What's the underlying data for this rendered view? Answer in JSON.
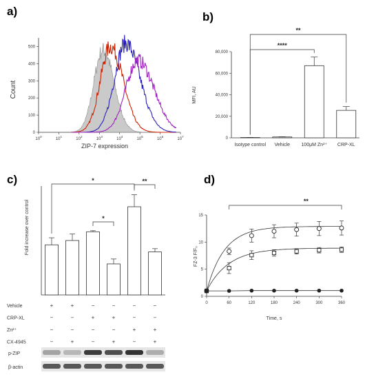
{
  "colors": {
    "isotype": "#b8b8b8",
    "vehicle": "#cc2200",
    "crp": "#2a1fb8",
    "zinc": "#a020c0",
    "wb_band": "#333333"
  },
  "chart_data": [
    {
      "panel": "a)",
      "type": "area",
      "xlabel": "ZIP-7 expression",
      "ylabel": "Count",
      "x_scale": "log",
      "xlim": [
        1,
        10000000
      ],
      "ylim": [
        0,
        550
      ],
      "x_ticks": [
        "10^0",
        "10^1",
        "10^2",
        "10^3",
        "10^4",
        "10^5",
        "10^6",
        "10^7"
      ],
      "y_ticks": [
        0,
        100,
        200,
        300,
        400,
        500
      ],
      "series": [
        {
          "key": "isotype",
          "color": "#b8b8b8",
          "peak_x": 1500,
          "peak_y": 480
        },
        {
          "key": "vehicle",
          "color": "#cc2200",
          "peak_x": 3500,
          "peak_y": 500
        },
        {
          "key": "crp",
          "color": "#2a1fb8",
          "peak_x": 20000,
          "peak_y": 520
        },
        {
          "key": "zinc",
          "color": "#a020c0",
          "peak_x": 80000,
          "peak_y": 420
        }
      ]
    },
    {
      "panel": "b)",
      "type": "bar",
      "ylabel": "MFI, AU",
      "ylim": [
        0,
        80000
      ],
      "y_ticks": [
        "0",
        "20,000",
        "40,000",
        "60,000",
        "80,000"
      ],
      "y_tick_values": [
        0,
        20000,
        40000,
        60000,
        80000
      ],
      "categories": [
        "Isotype control",
        "Vehicle",
        "100μM Zn²⁺",
        "CRP-XL"
      ],
      "values": [
        300,
        800,
        67000,
        25500
      ],
      "errors": [
        100,
        200,
        8000,
        3500
      ],
      "significance": [
        {
          "from": 0,
          "to": 2,
          "label": "****"
        },
        {
          "from": 0,
          "to": 3,
          "label": "**"
        }
      ]
    },
    {
      "panel": "c)",
      "type": "bar",
      "ylabel": "Fold increase over control",
      "ylim": [
        0,
        2
      ],
      "values": [
        0.92,
        1.0,
        1.16,
        0.57,
        1.62,
        0.79
      ],
      "errors": [
        0.13,
        0.12,
        0.02,
        0.09,
        0.22,
        0.06
      ],
      "conditions": [
        {
          "name": "Vehicle",
          "signs": [
            "+",
            "+",
            "−",
            "−",
            "−",
            "−"
          ]
        },
        {
          "name": "CRP-XL",
          "signs": [
            "−",
            "−",
            "+",
            "+",
            "−",
            "−"
          ]
        },
        {
          "name": "Zn²⁺",
          "signs": [
            "−",
            "−",
            "−",
            "−",
            "+",
            "+"
          ]
        },
        {
          "name": "CX-4945",
          "signs": [
            "−",
            "+",
            "−",
            "+",
            "−",
            "+"
          ]
        }
      ],
      "significance": [
        {
          "from": 0,
          "to": 4,
          "label": "*"
        },
        {
          "from": 4,
          "to": 5,
          "label": "**"
        },
        {
          "from": 2,
          "to": 3,
          "label": "*"
        }
      ],
      "blot": {
        "rows": [
          {
            "label": "p-ZIP",
            "intensity": [
              0.35,
              0.25,
              0.9,
              0.8,
              0.95,
              0.3
            ]
          },
          {
            "label": "β-actin",
            "intensity": [
              0.75,
              0.75,
              0.75,
              0.75,
              0.75,
              0.75
            ]
          }
        ]
      }
    },
    {
      "panel": "d)",
      "type": "line",
      "xlabel": "Time, s",
      "ylabel": "FZ-3 F/F₀",
      "xlim": [
        0,
        360
      ],
      "ylim": [
        0,
        15
      ],
      "x_ticks": [
        0,
        60,
        120,
        180,
        240,
        300,
        360
      ],
      "y_ticks": [
        0,
        5,
        10,
        15
      ],
      "series": [
        {
          "marker": "circle-open",
          "x": [
            0,
            60,
            120,
            180,
            240,
            300,
            360
          ],
          "y": [
            1.0,
            8.3,
            11.2,
            12.0,
            12.3,
            12.5,
            12.6
          ],
          "err": [
            0.2,
            0.6,
            1.2,
            1.2,
            1.2,
            1.3,
            1.3
          ]
        },
        {
          "marker": "square-open",
          "x": [
            0,
            60,
            120,
            180,
            240,
            300,
            360
          ],
          "y": [
            1.0,
            5.2,
            7.6,
            8.0,
            8.3,
            8.5,
            8.6
          ],
          "err": [
            0.2,
            1.0,
            0.8,
            0.6,
            0.5,
            0.5,
            0.5
          ]
        },
        {
          "marker": "circle-filled",
          "x": [
            0,
            60,
            120,
            180,
            240,
            300,
            360
          ],
          "y": [
            1.0,
            1.0,
            1.05,
            1.05,
            1.05,
            1.05,
            1.05
          ],
          "err": [
            0.05,
            0.05,
            0.05,
            0.05,
            0.05,
            0.05,
            0.05
          ]
        }
      ],
      "significance": [
        {
          "from_x": 60,
          "to_x": 360,
          "label": "**"
        }
      ]
    }
  ]
}
